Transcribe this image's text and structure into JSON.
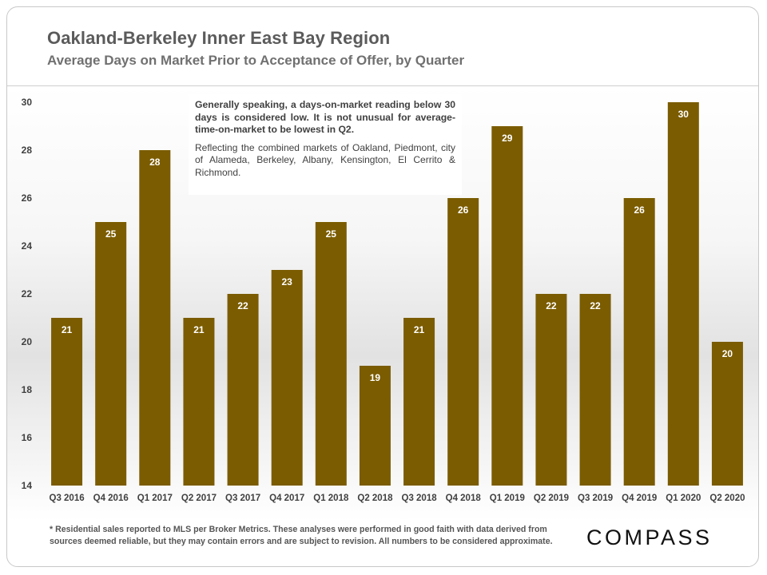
{
  "header": {
    "title": "Oakland-Berkeley Inner East Bay Region",
    "subtitle": "Average Days on Market Prior to Acceptance of Offer, by Quarter"
  },
  "annotation": {
    "line1": "Generally speaking, a days-on-market reading below 30 days is considered low. It is not unusual for average-time-on-market to be lowest in Q2.",
    "line2": "Reflecting the combined markets of Oakland, Piedmont, city of Alameda, Berkeley, Albany, Kensington, El Cerrito & Richmond."
  },
  "footnote": "* Residential sales reported to MLS per Broker Metrics. These analyses were performed in good faith with data derived from sources deemed reliable, but they may contain errors and are subject to revision. All numbers to be considered approximate.",
  "logo": "COMPASS",
  "colors": {
    "bar": "#7b5c00",
    "bar_label": "#ffffff",
    "tick_text": "#404040"
  },
  "chart_data": {
    "type": "bar",
    "title": "Average Days on Market Prior to Acceptance of Offer, by Quarter",
    "categories": [
      "Q3 2016",
      "Q4 2016",
      "Q1 2017",
      "Q2 2017",
      "Q3 2017",
      "Q4 2017",
      "Q1 2018",
      "Q2 2018",
      "Q3 2018",
      "Q4 2018",
      "Q1 2019",
      "Q2 2019",
      "Q3 2019",
      "Q4 2019",
      "Q1 2020",
      "Q2 2020"
    ],
    "values": [
      21,
      25,
      28,
      21,
      22,
      23,
      25,
      19,
      21,
      26,
      29,
      22,
      22,
      26,
      30,
      20
    ],
    "ylim": [
      14,
      30
    ],
    "yticks": [
      14,
      16,
      18,
      20,
      22,
      24,
      26,
      28,
      30
    ],
    "grid": false,
    "data_labels": true
  }
}
